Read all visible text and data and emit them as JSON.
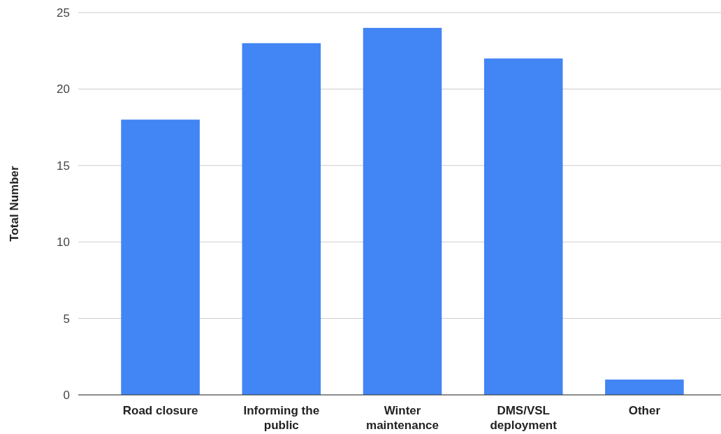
{
  "chart_data": {
    "type": "bar",
    "ylabel": "Total Number",
    "categories": [
      "Road closure",
      "Informing the public",
      "Winter maintenance",
      "DMS/VSL deployment",
      "Other"
    ],
    "values": [
      18,
      23,
      24,
      22,
      1
    ],
    "color": "#4285f4",
    "ylim": [
      0,
      25
    ],
    "yticks": [
      0,
      5,
      10,
      15,
      20,
      25
    ],
    "grid": "y"
  }
}
